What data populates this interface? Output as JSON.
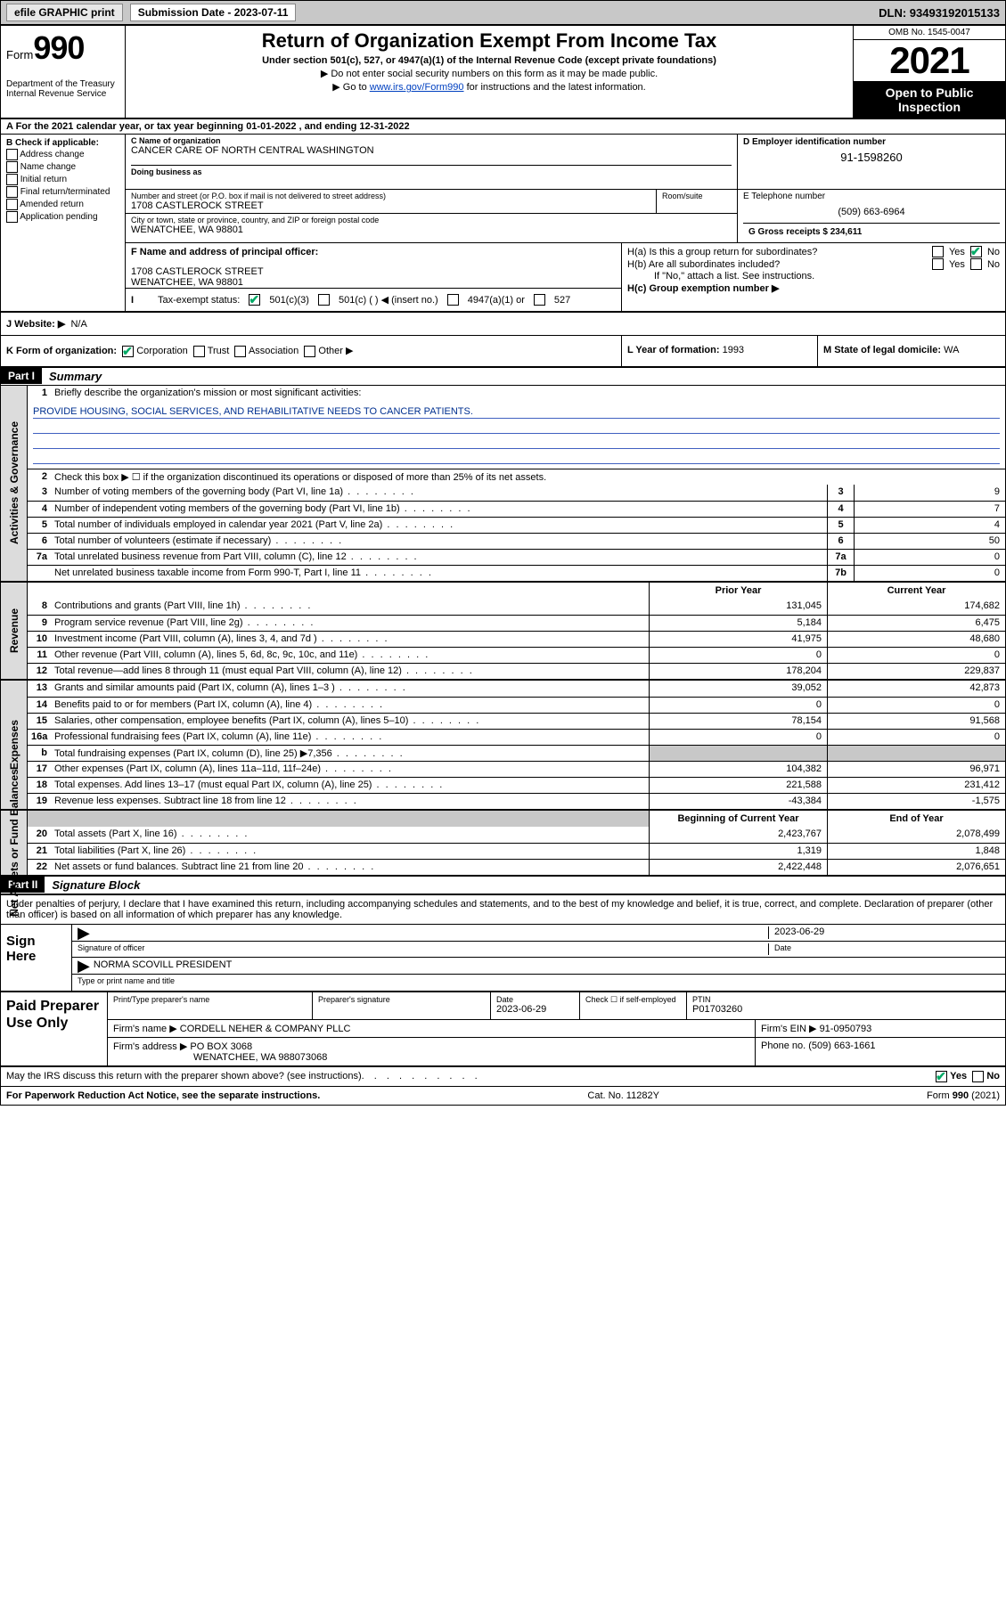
{
  "topbar": {
    "efile": "efile GRAPHIC print",
    "submission_label": "Submission Date - 2023-07-11",
    "dln": "DLN: 93493192015133"
  },
  "header": {
    "form_word": "Form",
    "form_no": "990",
    "dept": "Department of the Treasury",
    "irs": "Internal Revenue Service",
    "title": "Return of Organization Exempt From Income Tax",
    "sub": "Under section 501(c), 527, or 4947(a)(1) of the Internal Revenue Code (except private foundations)",
    "note1": "▶ Do not enter social security numbers on this form as it may be made public.",
    "note2_a": "▶ Go to ",
    "note2_link": "www.irs.gov/Form990",
    "note2_b": " for instructions and the latest information.",
    "omb": "OMB No. 1545-0047",
    "year": "2021",
    "otp": "Open to Public Inspection"
  },
  "lineA": "A For the 2021 calendar year, or tax year beginning 01-01-2022   , and ending 12-31-2022",
  "boxB": {
    "label": "B Check if applicable:",
    "items": [
      "Address change",
      "Name change",
      "Initial return",
      "Final return/terminated",
      "Amended return",
      "Application pending"
    ]
  },
  "boxC": {
    "label": "C Name of organization",
    "name": "CANCER CARE OF NORTH CENTRAL WASHINGTON",
    "dba_label": "Doing business as",
    "addr_label": "Number and street (or P.O. box if mail is not delivered to street address)",
    "room_label": "Room/suite",
    "street": "1708 CASTLEROCK STREET",
    "city_label": "City or town, state or province, country, and ZIP or foreign postal code",
    "city": "WENATCHEE, WA  98801"
  },
  "boxD": {
    "label": "D Employer identification number",
    "value": "91-1598260"
  },
  "boxE": {
    "label": "E Telephone number",
    "value": "(509) 663-6964"
  },
  "boxG": {
    "label": "G Gross receipts $",
    "value": "234,611"
  },
  "boxF": {
    "label": "F Name and address of principal officer:",
    "line1": "1708 CASTLEROCK STREET",
    "line2": "WENATCHEE, WA  98801"
  },
  "boxH": {
    "ha": "H(a)  Is this a group return for subordinates?",
    "hb": "H(b)  Are all subordinates included?",
    "hb_note": "If \"No,\" attach a list. See instructions.",
    "hc": "H(c)  Group exemption number ▶",
    "yes": "Yes",
    "no": "No"
  },
  "boxI": {
    "label": "Tax-exempt status:",
    "o1": "501(c)(3)",
    "o2": "501(c) (  ) ◀ (insert no.)",
    "o3": "4947(a)(1) or",
    "o4": "527"
  },
  "boxJ": {
    "label": "J   Website: ▶",
    "value": "N/A"
  },
  "boxK": {
    "label": "K Form of organization:",
    "o1": "Corporation",
    "o2": "Trust",
    "o3": "Association",
    "o4": "Other ▶"
  },
  "boxL": {
    "label": "L Year of formation:",
    "value": "1993"
  },
  "boxM": {
    "label": "M State of legal domicile:",
    "value": "WA"
  },
  "partI": {
    "hdr": "Part I",
    "title": "Summary"
  },
  "summary": {
    "side1": "Activities & Governance",
    "side2": "Revenue",
    "side3": "Expenses",
    "side4": "Net Assets or Fund Balances",
    "line1_label": "Briefly describe the organization's mission or most significant activities:",
    "line1_text": "PROVIDE HOUSING, SOCIAL SERVICES, AND REHABILITATIVE NEEDS TO CANCER PATIENTS.",
    "line2": "Check this box ▶ ☐  if the organization discontinued its operations or disposed of more than 25% of its net assets.",
    "rows_ag": [
      {
        "n": "3",
        "d": "Number of voting members of the governing body (Part VI, line 1a)",
        "box": "3",
        "v": "9"
      },
      {
        "n": "4",
        "d": "Number of independent voting members of the governing body (Part VI, line 1b)",
        "box": "4",
        "v": "7"
      },
      {
        "n": "5",
        "d": "Total number of individuals employed in calendar year 2021 (Part V, line 2a)",
        "box": "5",
        "v": "4"
      },
      {
        "n": "6",
        "d": "Total number of volunteers (estimate if necessary)",
        "box": "6",
        "v": "50"
      },
      {
        "n": "7a",
        "d": "Total unrelated business revenue from Part VIII, column (C), line 12",
        "box": "7a",
        "v": "0"
      },
      {
        "n": "",
        "d": "Net unrelated business taxable income from Form 990-T, Part I, line 11",
        "box": "7b",
        "v": "0"
      }
    ],
    "col_prior": "Prior Year",
    "col_current": "Current Year",
    "col_boc": "Beginning of Current Year",
    "col_eoy": "End of Year",
    "rows_rev": [
      {
        "n": "8",
        "d": "Contributions and grants (Part VIII, line 1h)",
        "p": "131,045",
        "c": "174,682"
      },
      {
        "n": "9",
        "d": "Program service revenue (Part VIII, line 2g)",
        "p": "5,184",
        "c": "6,475"
      },
      {
        "n": "10",
        "d": "Investment income (Part VIII, column (A), lines 3, 4, and 7d )",
        "p": "41,975",
        "c": "48,680"
      },
      {
        "n": "11",
        "d": "Other revenue (Part VIII, column (A), lines 5, 6d, 8c, 9c, 10c, and 11e)",
        "p": "0",
        "c": "0"
      },
      {
        "n": "12",
        "d": "Total revenue—add lines 8 through 11 (must equal Part VIII, column (A), line 12)",
        "p": "178,204",
        "c": "229,837"
      }
    ],
    "rows_exp": [
      {
        "n": "13",
        "d": "Grants and similar amounts paid (Part IX, column (A), lines 1–3 )",
        "p": "39,052",
        "c": "42,873"
      },
      {
        "n": "14",
        "d": "Benefits paid to or for members (Part IX, column (A), line 4)",
        "p": "0",
        "c": "0"
      },
      {
        "n": "15",
        "d": "Salaries, other compensation, employee benefits (Part IX, column (A), lines 5–10)",
        "p": "78,154",
        "c": "91,568"
      },
      {
        "n": "16a",
        "d": "Professional fundraising fees (Part IX, column (A), line 11e)",
        "p": "0",
        "c": "0"
      },
      {
        "n": "b",
        "d": "Total fundraising expenses (Part IX, column (D), line 25) ▶7,356",
        "p": "",
        "c": "",
        "grey": true
      },
      {
        "n": "17",
        "d": "Other expenses (Part IX, column (A), lines 11a–11d, 11f–24e)",
        "p": "104,382",
        "c": "96,971"
      },
      {
        "n": "18",
        "d": "Total expenses. Add lines 13–17 (must equal Part IX, column (A), line 25)",
        "p": "221,588",
        "c": "231,412"
      },
      {
        "n": "19",
        "d": "Revenue less expenses. Subtract line 18 from line 12",
        "p": "-43,384",
        "c": "-1,575"
      }
    ],
    "rows_net": [
      {
        "n": "20",
        "d": "Total assets (Part X, line 16)",
        "p": "2,423,767",
        "c": "2,078,499"
      },
      {
        "n": "21",
        "d": "Total liabilities (Part X, line 26)",
        "p": "1,319",
        "c": "1,848"
      },
      {
        "n": "22",
        "d": "Net assets or fund balances. Subtract line 21 from line 20",
        "p": "2,422,448",
        "c": "2,076,651"
      }
    ]
  },
  "partII": {
    "hdr": "Part II",
    "title": "Signature Block"
  },
  "sig": {
    "para": "Under penalties of perjury, I declare that I have examined this return, including accompanying schedules and statements, and to the best of my knowledge and belief, it is true, correct, and complete. Declaration of preparer (other than officer) is based on all information of which preparer has any knowledge.",
    "sign_here": "Sign Here",
    "sig_officer": "Signature of officer",
    "date": "Date",
    "date_val": "2023-06-29",
    "name_title": "NORMA SCOVILL  PRESIDENT",
    "name_label": "Type or print name and title"
  },
  "prep": {
    "label": "Paid Preparer Use Only",
    "h1": "Print/Type preparer's name",
    "h2": "Preparer's signature",
    "h3": "Date",
    "h3v": "2023-06-29",
    "h4": "Check ☐ if self-employed",
    "h5": "PTIN",
    "h5v": "P01703260",
    "firm_name_l": "Firm's name     ▶",
    "firm_name": "CORDELL NEHER & COMPANY PLLC",
    "firm_ein_l": "Firm's EIN ▶",
    "firm_ein": "91-0950793",
    "firm_addr_l": "Firm's address ▶",
    "firm_addr1": "PO BOX 3068",
    "firm_addr2": "WENATCHEE, WA  988073068",
    "phone_l": "Phone no.",
    "phone": "(509) 663-1661"
  },
  "footer": {
    "discuss": "May the IRS discuss this return with the preparer shown above? (see instructions)",
    "yes": "Yes",
    "no": "No",
    "paperwork": "For Paperwork Reduction Act Notice, see the separate instructions.",
    "cat": "Cat. No. 11282Y",
    "formno": "Form 990 (2021)"
  },
  "colors": {
    "topbar_bg": "#c8c8c8",
    "link": "#0040c0",
    "check_green": "#00aa66"
  }
}
